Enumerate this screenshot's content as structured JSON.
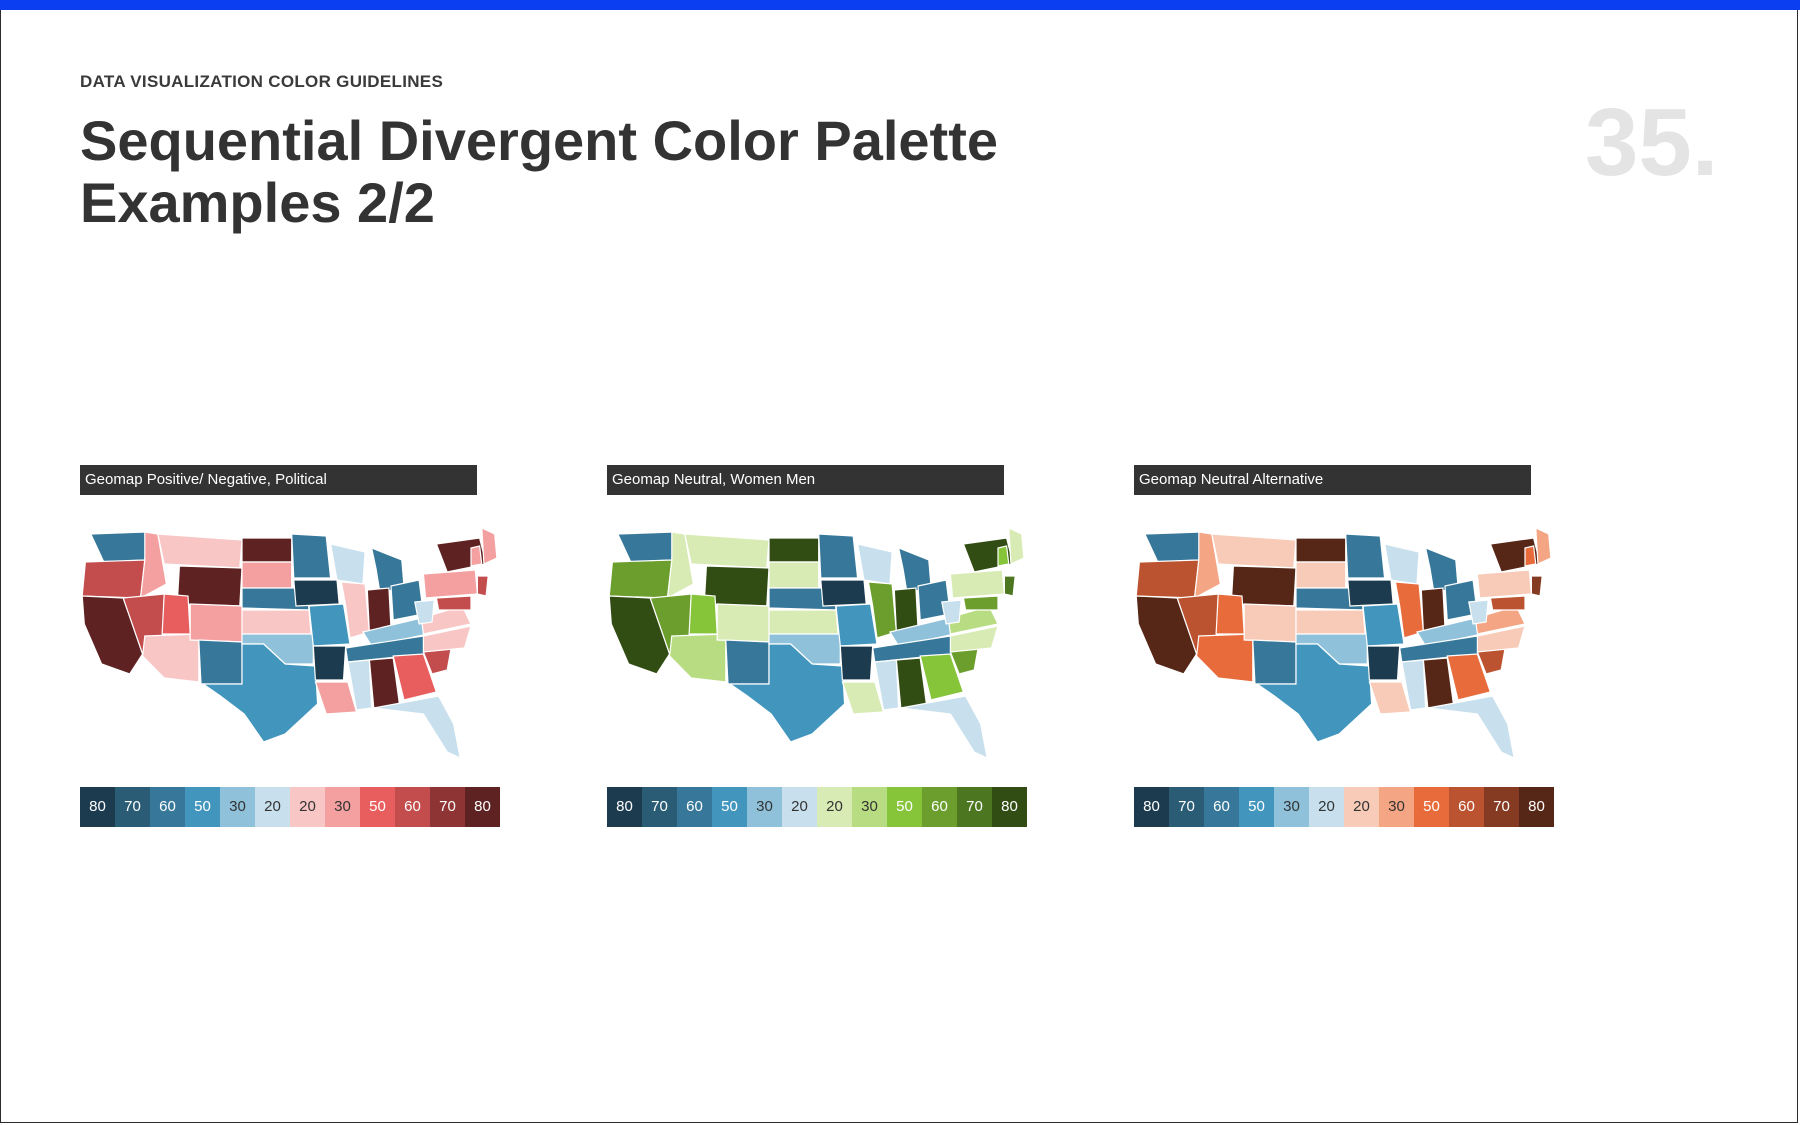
{
  "header": {
    "eyebrow": "DATA VISUALIZATION COLOR GUIDELINES",
    "title_line1": "Sequential Divergent Color Palette",
    "title_line2": "Examples 2/2",
    "page_number": "35."
  },
  "accent_color": "#0a3ef0",
  "panels": [
    {
      "title": "Geomap Positive/ Negative, Political",
      "legend": [
        {
          "label": "80",
          "color": "#1c3b4f"
        },
        {
          "label": "70",
          "color": "#2a5c75"
        },
        {
          "label": "60",
          "color": "#37789a"
        },
        {
          "label": "50",
          "color": "#4295bd"
        },
        {
          "label": "30",
          "color": "#8fc2da"
        },
        {
          "label": "20",
          "color": "#c8e0ed"
        },
        {
          "label": "20",
          "color": "#f9c6c6"
        },
        {
          "label": "30",
          "color": "#f4a0a0"
        },
        {
          "label": "50",
          "color": "#e85e5e"
        },
        {
          "label": "60",
          "color": "#c34c4c"
        },
        {
          "label": "70",
          "color": "#8e3434"
        },
        {
          "label": "80",
          "color": "#5e2222"
        }
      ]
    },
    {
      "title": "Geomap Neutral, Women Men",
      "legend": [
        {
          "label": "80",
          "color": "#1c3b4f"
        },
        {
          "label": "70",
          "color": "#2a5c75"
        },
        {
          "label": "60",
          "color": "#37789a"
        },
        {
          "label": "50",
          "color": "#4295bd"
        },
        {
          "label": "30",
          "color": "#8fc2da"
        },
        {
          "label": "20",
          "color": "#c8e0ed"
        },
        {
          "label": "20",
          "color": "#d9ebb4"
        },
        {
          "label": "30",
          "color": "#b8dc82"
        },
        {
          "label": "50",
          "color": "#86c43a"
        },
        {
          "label": "60",
          "color": "#6b9e2c"
        },
        {
          "label": "70",
          "color": "#4d7620"
        },
        {
          "label": "80",
          "color": "#314d13"
        }
      ]
    },
    {
      "title": "Geomap Neutral Alternative",
      "legend": [
        {
          "label": "80",
          "color": "#1c3b4f"
        },
        {
          "label": "70",
          "color": "#2a5c75"
        },
        {
          "label": "60",
          "color": "#37789a"
        },
        {
          "label": "50",
          "color": "#4295bd"
        },
        {
          "label": "30",
          "color": "#8fc2da"
        },
        {
          "label": "20",
          "color": "#c8e0ed"
        },
        {
          "label": "20",
          "color": "#f8cbb8"
        },
        {
          "label": "30",
          "color": "#f3a584"
        },
        {
          "label": "50",
          "color": "#e86b3c"
        },
        {
          "label": "60",
          "color": "#bb5330"
        },
        {
          "label": "70",
          "color": "#853b22"
        },
        {
          "label": "80",
          "color": "#562616"
        }
      ]
    }
  ]
}
